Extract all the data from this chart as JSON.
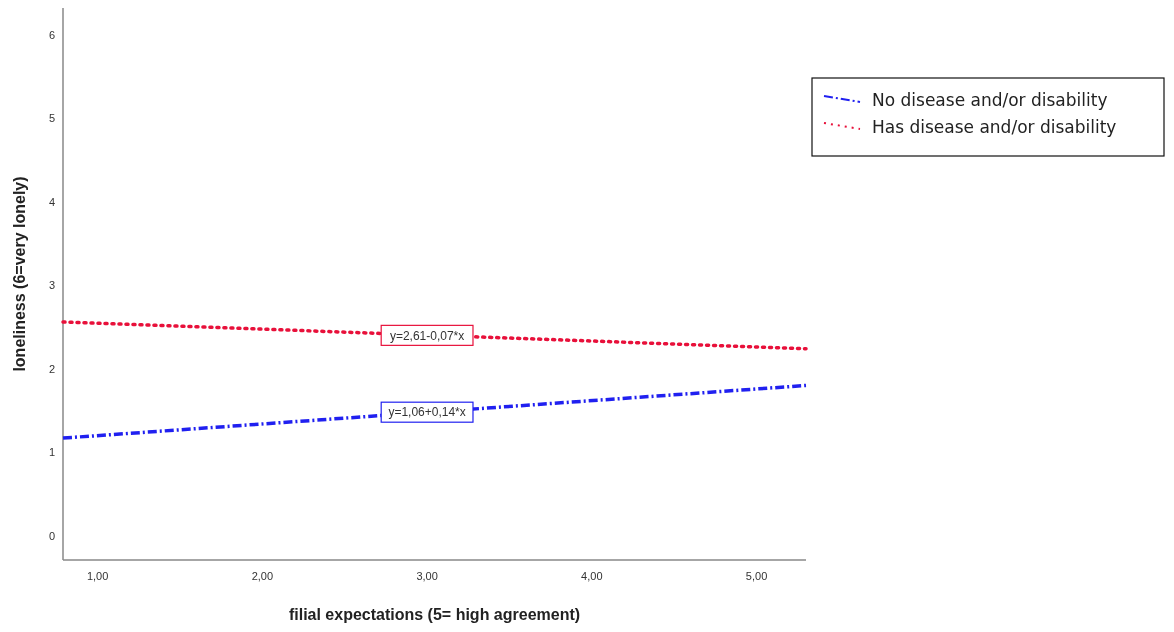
{
  "chart_data": {
    "type": "line",
    "xlabel": "filial expectations (5= high agreement)",
    "ylabel": "loneliness (6=very lonely)",
    "xlim": [
      0.79,
      5.3
    ],
    "ylim": [
      -0.29,
      6.32
    ],
    "xticks": [
      {
        "value": 1,
        "label": "1,00"
      },
      {
        "value": 2,
        "label": "2,00"
      },
      {
        "value": 3,
        "label": "3,00"
      },
      {
        "value": 4,
        "label": "4,00"
      },
      {
        "value": 5,
        "label": "5,00"
      }
    ],
    "yticks": [
      0,
      1,
      2,
      3,
      4,
      5,
      6
    ],
    "x": [
      0.79,
      5.3
    ],
    "series": [
      {
        "name": "No disease and/or disability",
        "color": "#2020f0",
        "line_style": "dashed",
        "values": [
          1.17,
          1.8
        ]
      },
      {
        "name": "Has disease and/or disability",
        "color": "#e8103a",
        "line_style": "dotted",
        "values": [
          2.56,
          2.24
        ]
      }
    ],
    "annotations": [
      {
        "text": "y=1,06+0,14*x",
        "x": 3,
        "y": 1.48
      },
      {
        "text": "y=2,61-0,07*x",
        "x": 3,
        "y": 2.4
      }
    ],
    "legend": "right",
    "grid": false,
    "marker": "none"
  }
}
